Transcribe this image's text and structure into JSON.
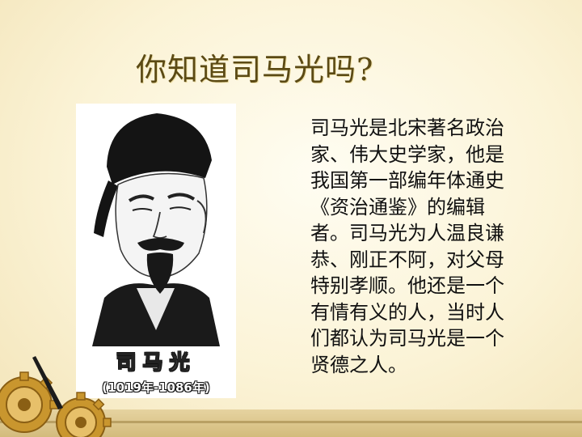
{
  "slide": {
    "title": "你知道司马光吗?",
    "portrait": {
      "name_caption": "司马光",
      "years_caption": "(1019年-1086年)"
    },
    "body_lines": [
      "司马光是北宋著名政治",
      "家、伟大史学家，他是",
      "我国第一部编年体通史",
      "《资治通鉴》的编辑",
      "者。司马光为人温良谦",
      "恭、刚正不阿，对父母",
      "特别孝顺。他还是一个",
      "有情有义的人，当时人",
      "们都认为司马光是一个",
      "贤德之人。"
    ]
  },
  "colors": {
    "background": "#fbf3d6",
    "title": "#5b4a14",
    "text": "#111111",
    "bar": "#d9c48c",
    "gear": "#b8862c"
  },
  "icons": [
    "gear-icon",
    "clock-hand-icon"
  ]
}
